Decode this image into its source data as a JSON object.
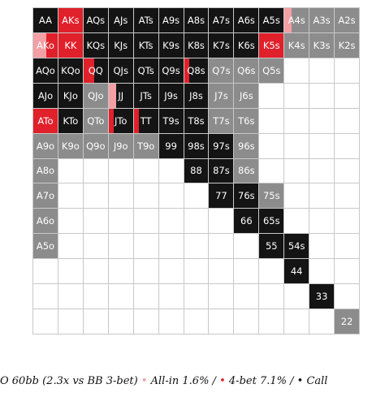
{
  "colors": {
    "allin": "#f2a0a4",
    "fourbet": "#e0202a",
    "call": "#141414",
    "fold_grey": "#8c8c8c",
    "empty": "#ffffff"
  },
  "hands": [
    [
      "AA",
      "AKs",
      "AQs",
      "AJs",
      "ATs",
      "A9s",
      "A8s",
      "A7s",
      "A6s",
      "A5s",
      "A4s",
      "A3s",
      "A2s"
    ],
    [
      "AKo",
      "KK",
      "KQs",
      "KJs",
      "KTs",
      "K9s",
      "K8s",
      "K7s",
      "K6s",
      "K5s",
      "K4s",
      "K3s",
      "K2s"
    ],
    [
      "AQo",
      "KQo",
      "QQ",
      "QJs",
      "QTs",
      "Q9s",
      "Q8s",
      "Q7s",
      "Q6s",
      "Q5s",
      "",
      "",
      ""
    ],
    [
      "AJo",
      "KJo",
      "QJo",
      "JJ",
      "JTs",
      "J9s",
      "J8s",
      "J7s",
      "J6s",
      "",
      "",
      "",
      ""
    ],
    [
      "ATo",
      "KTo",
      "QTo",
      "JTo",
      "TT",
      "T9s",
      "T8s",
      "T7s",
      "T6s",
      "",
      "",
      "",
      ""
    ],
    [
      "A9o",
      "K9o",
      "Q9o",
      "J9o",
      "T9o",
      "99",
      "98s",
      "97s",
      "96s",
      "",
      "",
      "",
      ""
    ],
    [
      "A8o",
      "",
      "",
      "",
      "",
      "",
      "88",
      "87s",
      "86s",
      "",
      "",
      "",
      ""
    ],
    [
      "A7o",
      "",
      "",
      "",
      "",
      "",
      "",
      "77",
      "76s",
      "75s",
      "",
      "",
      ""
    ],
    [
      "A6o",
      "",
      "",
      "",
      "",
      "",
      "",
      "",
      "66",
      "65s",
      "",
      "",
      ""
    ],
    [
      "A5o",
      "",
      "",
      "",
      "",
      "",
      "",
      "",
      "",
      "55",
      "54s",
      "",
      ""
    ],
    [
      "",
      "",
      "",
      "",
      "",
      "",
      "",
      "",
      "",
      "",
      "44",
      "",
      ""
    ],
    [
      "",
      "",
      "",
      "",
      "",
      "",
      "",
      "",
      "",
      "",
      "",
      "33",
      ""
    ],
    [
      "",
      "",
      "",
      "",
      "",
      "",
      "",
      "",
      "",
      "",
      "",
      "",
      "22"
    ]
  ],
  "base_colors": [
    [
      "black",
      "red",
      "black",
      "black",
      "black",
      "black",
      "black",
      "black",
      "black",
      "black",
      "grey",
      "grey",
      "grey"
    ],
    [
      "red",
      "red",
      "black",
      "black",
      "black",
      "black",
      "black",
      "black",
      "black",
      "red",
      "grey",
      "grey",
      "grey"
    ],
    [
      "black",
      "black",
      "black",
      "black",
      "black",
      "black",
      "black",
      "grey",
      "grey",
      "grey",
      "white",
      "white",
      "white"
    ],
    [
      "black",
      "black",
      "grey",
      "black",
      "black",
      "black",
      "black",
      "grey",
      "grey",
      "white",
      "white",
      "white",
      "white"
    ],
    [
      "red",
      "black",
      "grey",
      "black",
      "black",
      "black",
      "black",
      "grey",
      "grey",
      "white",
      "white",
      "white",
      "white"
    ],
    [
      "grey",
      "grey",
      "grey",
      "grey",
      "grey",
      "black",
      "black",
      "black",
      "grey",
      "white",
      "white",
      "white",
      "white"
    ],
    [
      "grey",
      "white",
      "white",
      "white",
      "white",
      "white",
      "black",
      "black",
      "grey",
      "white",
      "white",
      "white",
      "white"
    ],
    [
      "grey",
      "white",
      "white",
      "white",
      "white",
      "white",
      "white",
      "black",
      "black",
      "grey",
      "white",
      "white",
      "white"
    ],
    [
      "grey",
      "white",
      "white",
      "white",
      "white",
      "white",
      "white",
      "white",
      "black",
      "black",
      "white",
      "white",
      "white"
    ],
    [
      "grey",
      "white",
      "white",
      "white",
      "white",
      "white",
      "white",
      "white",
      "white",
      "black",
      "black",
      "white",
      "white"
    ],
    [
      "white",
      "white",
      "white",
      "white",
      "white",
      "white",
      "white",
      "white",
      "white",
      "white",
      "black",
      "white",
      "white"
    ],
    [
      "white",
      "white",
      "white",
      "white",
      "white",
      "white",
      "white",
      "white",
      "white",
      "white",
      "white",
      "black",
      "white"
    ],
    [
      "white",
      "white",
      "white",
      "white",
      "white",
      "white",
      "white",
      "white",
      "white",
      "white",
      "white",
      "white",
      "grey"
    ]
  ],
  "stripes": [
    {
      "row": 0,
      "col": 10,
      "type": "allin",
      "fraction": 0.28
    },
    {
      "row": 1,
      "col": 0,
      "type": "allin",
      "fraction": 0.55
    },
    {
      "row": 2,
      "col": 2,
      "type": "fourbet",
      "fraction": 0.45
    },
    {
      "row": 2,
      "col": 6,
      "type": "fourbet",
      "fraction": 0.22
    },
    {
      "row": 3,
      "col": 3,
      "type": "allin",
      "fraction": 0.32
    },
    {
      "row": 4,
      "col": 3,
      "type": "fourbet",
      "fraction": 0.22
    },
    {
      "row": 4,
      "col": 4,
      "type": "fourbet",
      "fraction": 0.22
    }
  ],
  "caption": {
    "prefix": "O 60bb (2.3x vs BB 3-bet)",
    "allin_dot": "•",
    "allin_text": "All-in 1.6% /",
    "fourbet_dot": "•",
    "fourbet_text": "4-bet 7.1% /",
    "call_dot": "•",
    "call_text": "Call"
  }
}
